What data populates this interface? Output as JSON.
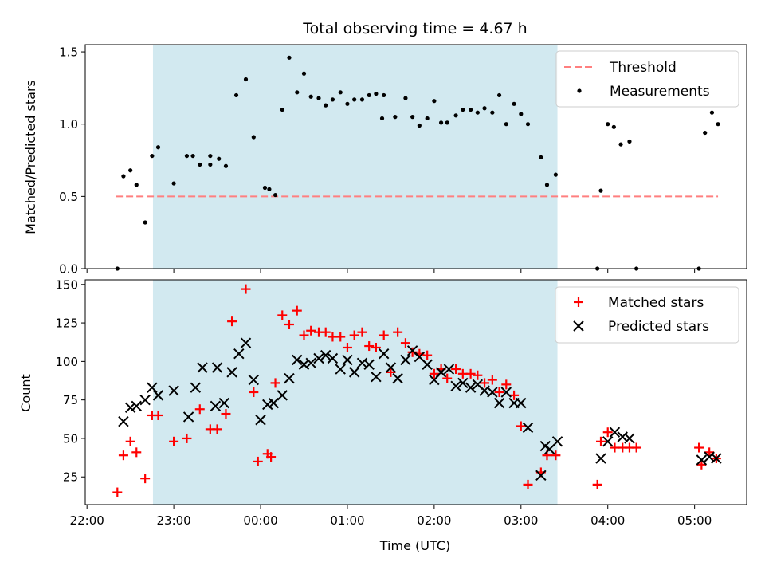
{
  "chart_data": [
    {
      "type": "scatter",
      "title": "Total observing time = 4.67 h",
      "ylabel": "Matched/Predicted stars",
      "xlabel": "",
      "ylim": [
        0,
        1.55
      ],
      "yticks": [
        0.0,
        0.5,
        1.0,
        1.5
      ],
      "ytick_labels": [
        "0.0",
        "0.5",
        "1.0",
        "1.5"
      ],
      "grid": false,
      "legend_position": "top-right",
      "shaded_interval": {
        "x_start": 22.76,
        "x_end": 27.42,
        "color": "#d2e9f0"
      },
      "threshold": {
        "name": "Threshold",
        "value": 0.5,
        "x_start": 22.33,
        "x_end": 29.27,
        "color": "#ff7f7f"
      },
      "series": [
        {
          "name": "Measurements",
          "color": "#000000",
          "x": [
            22.35,
            22.42,
            22.5,
            22.57,
            22.67,
            22.75,
            22.82,
            23.0,
            23.15,
            23.22,
            23.3,
            23.42,
            23.42,
            23.52,
            23.6,
            23.72,
            23.83,
            23.92,
            24.05,
            24.1,
            24.17,
            24.25,
            24.33,
            24.42,
            24.5,
            24.58,
            24.67,
            24.75,
            24.83,
            24.92,
            25.0,
            25.08,
            25.17,
            25.25,
            25.33,
            25.4,
            25.42,
            25.55,
            25.67,
            25.75,
            25.83,
            25.92,
            26.0,
            26.08,
            26.15,
            26.25,
            26.33,
            26.42,
            26.5,
            26.58,
            26.67,
            26.75,
            26.83,
            26.92,
            27.0,
            27.08,
            27.23,
            27.3,
            27.4,
            27.88,
            27.92,
            28.0,
            28.07,
            28.15,
            28.25,
            28.33,
            29.05,
            29.12,
            29.2,
            29.27
          ],
          "y": [
            0.0,
            0.64,
            0.68,
            0.58,
            0.32,
            0.78,
            0.84,
            0.59,
            0.78,
            0.78,
            0.72,
            0.78,
            0.72,
            0.76,
            0.71,
            1.2,
            1.31,
            0.91,
            0.56,
            0.55,
            0.51,
            1.1,
            1.46,
            1.22,
            1.35,
            1.19,
            1.18,
            1.13,
            1.17,
            1.22,
            1.14,
            1.17,
            1.17,
            1.2,
            1.21,
            1.04,
            1.2,
            1.05,
            1.18,
            1.05,
            0.99,
            1.04,
            1.16,
            1.01,
            1.01,
            1.06,
            1.1,
            1.1,
            1.08,
            1.11,
            1.08,
            1.2,
            1.0,
            1.14,
            1.07,
            1.0,
            0.77,
            0.58,
            0.65,
            0.0,
            0.54,
            1.0,
            0.98,
            0.86,
            0.88,
            0.0,
            0.0,
            0.94,
            1.08,
            1.0
          ]
        }
      ]
    },
    {
      "type": "scatter",
      "title": "",
      "xlabel": "Time (UTC)",
      "ylabel": "Count",
      "ylim": [
        7,
        153
      ],
      "yticks": [
        25,
        50,
        75,
        100,
        125,
        150
      ],
      "ytick_labels": [
        "25",
        "50",
        "75",
        "100",
        "125",
        "150"
      ],
      "xlim": [
        21.98,
        29.6
      ],
      "xticks": [
        22,
        23,
        24,
        25,
        26,
        27,
        28,
        29
      ],
      "xtick_labels": [
        "22:00",
        "23:00",
        "00:00",
        "01:00",
        "02:00",
        "03:00",
        "04:00",
        "05:00"
      ],
      "grid": false,
      "legend_position": "top-right",
      "shaded_interval": {
        "x_start": 22.76,
        "x_end": 27.42,
        "color": "#d2e9f0"
      },
      "series": [
        {
          "name": "Matched stars",
          "color": "#ff0000",
          "marker": "+",
          "x": [
            22.35,
            22.42,
            22.5,
            22.57,
            22.67,
            22.75,
            22.82,
            23.0,
            23.15,
            23.3,
            23.42,
            23.5,
            23.6,
            23.67,
            23.83,
            23.92,
            23.97,
            24.08,
            24.12,
            24.17,
            24.25,
            24.33,
            24.42,
            24.5,
            24.58,
            24.67,
            24.75,
            24.83,
            24.92,
            25.0,
            25.08,
            25.17,
            25.25,
            25.33,
            25.42,
            25.5,
            25.58,
            25.67,
            25.75,
            25.83,
            25.92,
            26.0,
            26.08,
            26.15,
            26.25,
            26.33,
            26.42,
            26.5,
            26.58,
            26.67,
            26.75,
            26.83,
            26.92,
            27.0,
            27.08,
            27.23,
            27.3,
            27.4,
            27.88,
            27.92,
            28.0,
            28.08,
            28.17,
            28.25,
            28.33,
            29.05,
            29.08,
            29.17,
            29.25
          ],
          "y": [
            15,
            39,
            48,
            41,
            24,
            65,
            65,
            48,
            50,
            69,
            56,
            56,
            66,
            126,
            147,
            80,
            35,
            40,
            38,
            86,
            130,
            124,
            133,
            117,
            120,
            119,
            119,
            116,
            116,
            109,
            117,
            119,
            110,
            109,
            117,
            93,
            119,
            112,
            106,
            105,
            104,
            92,
            95,
            89,
            95,
            92,
            92,
            91,
            86,
            88,
            80,
            85,
            78,
            58,
            20,
            28,
            39,
            39,
            20,
            48,
            54,
            44,
            44,
            44,
            44,
            44,
            33,
            41,
            37
          ]
        },
        {
          "name": "Predicted stars",
          "color": "#000000",
          "marker": "x",
          "x": [
            22.42,
            22.5,
            22.57,
            22.67,
            22.75,
            22.82,
            23.0,
            23.17,
            23.25,
            23.33,
            23.48,
            23.5,
            23.58,
            23.67,
            23.75,
            23.83,
            23.92,
            24.0,
            24.08,
            24.15,
            24.25,
            24.33,
            24.42,
            24.5,
            24.58,
            24.67,
            24.75,
            24.83,
            24.92,
            25.0,
            25.08,
            25.17,
            25.25,
            25.33,
            25.42,
            25.5,
            25.58,
            25.67,
            25.75,
            25.83,
            25.92,
            26.0,
            26.08,
            26.17,
            26.25,
            26.33,
            26.42,
            26.5,
            26.58,
            26.67,
            26.75,
            26.83,
            26.92,
            27.0,
            27.08,
            27.23,
            27.28,
            27.33,
            27.42,
            27.92,
            28.0,
            28.08,
            28.17,
            28.25,
            29.08,
            29.17,
            29.25
          ],
          "y": [
            61,
            70,
            71,
            75,
            83,
            78,
            81,
            64,
            83,
            96,
            71,
            96,
            73,
            93,
            105,
            112,
            88,
            62,
            72,
            73,
            78,
            89,
            101,
            98,
            99,
            102,
            104,
            102,
            95,
            101,
            93,
            99,
            98,
            90,
            105,
            96,
            89,
            101,
            107,
            103,
            98,
            88,
            93,
            95,
            84,
            86,
            83,
            85,
            81,
            80,
            73,
            80,
            73,
            73,
            57,
            26,
            45,
            43,
            48,
            37,
            48,
            54,
            51,
            50,
            36,
            38,
            37
          ]
        }
      ]
    }
  ]
}
